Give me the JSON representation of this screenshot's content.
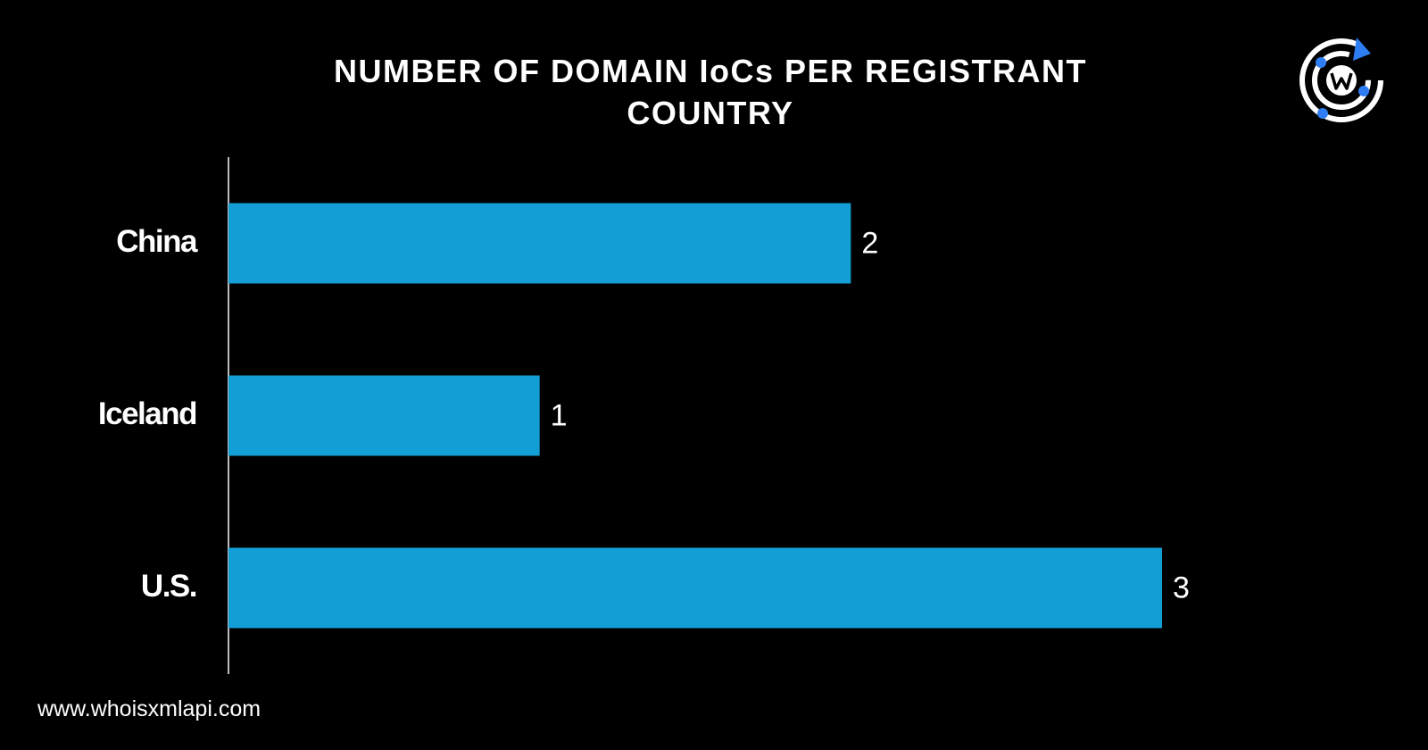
{
  "chart_data": {
    "type": "hbar",
    "title": "NUMBER OF DOMAIN IoCs PER REGISTRANT COUNTRY",
    "categories": [
      "China",
      "Iceland",
      "U.S."
    ],
    "values": [
      2,
      1,
      3
    ],
    "color": "#139fd6",
    "xlim": [
      0,
      3
    ]
  },
  "footer": "www.whoisxmlapi.com"
}
